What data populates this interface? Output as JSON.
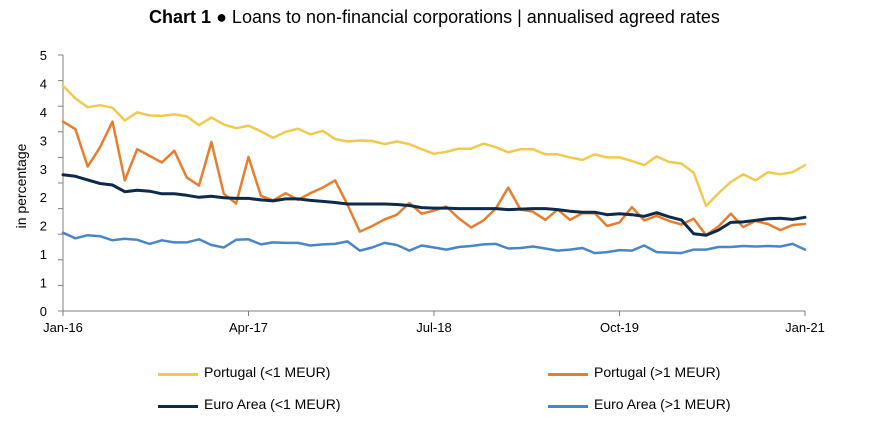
{
  "chart_data": {
    "type": "line",
    "title_bold": "Chart 1",
    "title_rest": " ● Loans to non-financial corporations | annualised agreed rates",
    "ylabel": "in percentage",
    "xlabel": "",
    "ylim": [
      0,
      5
    ],
    "y_ticks": [
      "0",
      "1",
      "1",
      "2",
      "2",
      "3",
      "3",
      "4",
      "4",
      "5"
    ],
    "x_tick_labels": [
      "Jan-16",
      "Apr-17",
      "Jul-18",
      "Oct-19",
      "Jan-21"
    ],
    "grid": false,
    "legend_position": "bottom",
    "x": [
      "Jan-16",
      "Feb-16",
      "Mar-16",
      "Apr-16",
      "May-16",
      "Jun-16",
      "Jul-16",
      "Aug-16",
      "Sep-16",
      "Oct-16",
      "Nov-16",
      "Dec-16",
      "Jan-17",
      "Feb-17",
      "Mar-17",
      "Apr-17",
      "May-17",
      "Jun-17",
      "Jul-17",
      "Aug-17",
      "Sep-17",
      "Oct-17",
      "Nov-17",
      "Dec-17",
      "Jan-18",
      "Feb-18",
      "Mar-18",
      "Apr-18",
      "May-18",
      "Jun-18",
      "Jul-18",
      "Aug-18",
      "Sep-18",
      "Oct-18",
      "Nov-18",
      "Dec-18",
      "Jan-19",
      "Feb-19",
      "Mar-19",
      "Apr-19",
      "May-19",
      "Jun-19",
      "Jul-19",
      "Aug-19",
      "Sep-19",
      "Oct-19",
      "Nov-19",
      "Dec-19",
      "Jan-20",
      "Feb-20",
      "Mar-20",
      "Apr-20",
      "May-20",
      "Jun-20",
      "Jul-20",
      "Aug-20",
      "Sep-20",
      "Oct-20",
      "Nov-20",
      "Dec-20",
      "Jan-21"
    ],
    "series": [
      {
        "name": "Portugal (<1 MEUR)",
        "color": "#F2C94C",
        "values": [
          4.4,
          4.15,
          3.98,
          4.02,
          3.97,
          3.72,
          3.88,
          3.82,
          3.81,
          3.84,
          3.8,
          3.63,
          3.78,
          3.64,
          3.57,
          3.62,
          3.51,
          3.38,
          3.5,
          3.56,
          3.45,
          3.52,
          3.36,
          3.31,
          3.33,
          3.32,
          3.26,
          3.31,
          3.26,
          3.16,
          3.07,
          3.11,
          3.17,
          3.17,
          3.27,
          3.2,
          3.1,
          3.16,
          3.16,
          3.06,
          3.06,
          3.0,
          2.95,
          3.06,
          3.0,
          3.0,
          2.93,
          2.85,
          3.02,
          2.91,
          2.88,
          2.7,
          2.05,
          2.3,
          2.52,
          2.67,
          2.55,
          2.71,
          2.67,
          2.71,
          2.85
        ]
      },
      {
        "name": "Portugal (>1 MEUR)",
        "color": "#E67E2E",
        "values": [
          3.7,
          3.55,
          2.82,
          3.2,
          3.7,
          2.55,
          3.16,
          3.03,
          2.9,
          3.13,
          2.61,
          2.45,
          3.3,
          2.29,
          2.1,
          3.01,
          2.25,
          2.16,
          2.3,
          2.17,
          2.3,
          2.41,
          2.55,
          2.08,
          1.55,
          1.66,
          1.79,
          1.88,
          2.11,
          1.9,
          1.96,
          2.04,
          1.81,
          1.63,
          1.77,
          2.0,
          2.41,
          1.98,
          1.94,
          1.78,
          1.98,
          1.78,
          1.91,
          1.91,
          1.66,
          1.73,
          2.03,
          1.77,
          1.86,
          1.76,
          1.69,
          1.8,
          1.48,
          1.65,
          1.9,
          1.64,
          1.76,
          1.7,
          1.58,
          1.68,
          1.7
        ]
      },
      {
        "name": "Euro Area (<1 MEUR)",
        "color": "#0D2A4A",
        "values": [
          2.66,
          2.63,
          2.56,
          2.49,
          2.46,
          2.33,
          2.36,
          2.34,
          2.29,
          2.29,
          2.26,
          2.22,
          2.24,
          2.21,
          2.2,
          2.2,
          2.17,
          2.15,
          2.19,
          2.19,
          2.16,
          2.14,
          2.12,
          2.09,
          2.09,
          2.09,
          2.09,
          2.08,
          2.06,
          2.02,
          2.01,
          2.01,
          2.0,
          2.0,
          2.0,
          2.0,
          1.98,
          1.99,
          2.0,
          2.0,
          1.98,
          1.95,
          1.93,
          1.93,
          1.88,
          1.9,
          1.88,
          1.85,
          1.92,
          1.84,
          1.78,
          1.51,
          1.48,
          1.58,
          1.73,
          1.74,
          1.77,
          1.8,
          1.81,
          1.79,
          1.83
        ]
      },
      {
        "name": "Euro Area (>1 MEUR)",
        "color": "#4A86C5",
        "values": [
          1.53,
          1.42,
          1.48,
          1.46,
          1.38,
          1.41,
          1.39,
          1.31,
          1.38,
          1.34,
          1.34,
          1.4,
          1.29,
          1.24,
          1.39,
          1.4,
          1.3,
          1.34,
          1.33,
          1.33,
          1.28,
          1.3,
          1.31,
          1.36,
          1.18,
          1.24,
          1.33,
          1.29,
          1.18,
          1.28,
          1.24,
          1.2,
          1.25,
          1.27,
          1.3,
          1.31,
          1.22,
          1.23,
          1.26,
          1.22,
          1.18,
          1.2,
          1.23,
          1.13,
          1.15,
          1.19,
          1.18,
          1.28,
          1.15,
          1.14,
          1.13,
          1.2,
          1.2,
          1.25,
          1.25,
          1.27,
          1.26,
          1.27,
          1.26,
          1.31,
          1.2
        ]
      }
    ]
  }
}
